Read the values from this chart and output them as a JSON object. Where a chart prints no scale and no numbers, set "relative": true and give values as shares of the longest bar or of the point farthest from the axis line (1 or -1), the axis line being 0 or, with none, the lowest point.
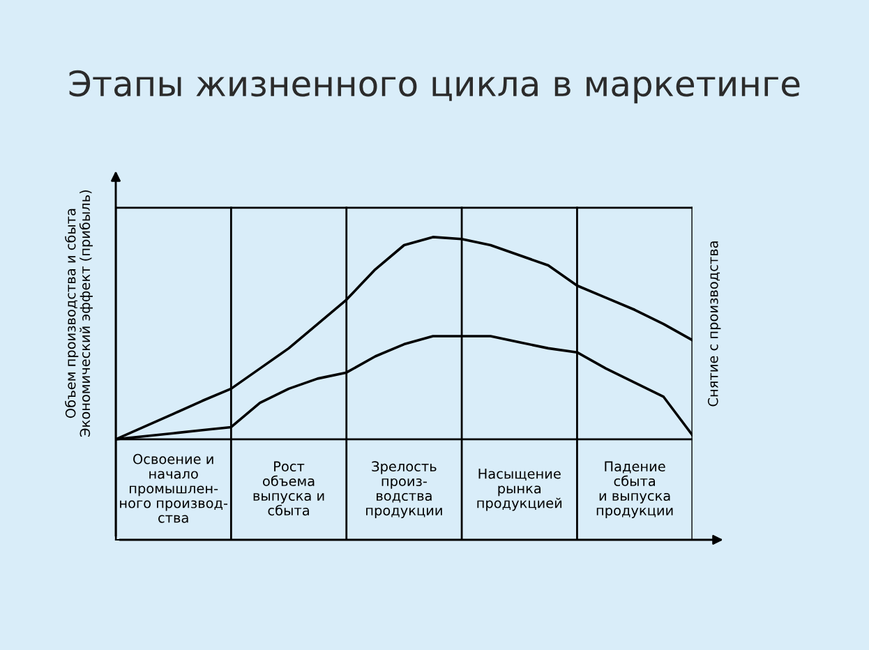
{
  "chart_data": {
    "type": "line",
    "title": "Этапы жизненного цикла в маркетинге",
    "ylabel": "Объем производства и сбыта\nЭкономический эффект (прибыль)",
    "y2label": "Снятие с производства",
    "relative": true,
    "categories": [
      null,
      null,
      null,
      null,
      null,
      null,
      null,
      null,
      null,
      null,
      null,
      null,
      null,
      null,
      null,
      null,
      null,
      null,
      null,
      null,
      null
    ],
    "series": [
      {
        "color": "#000000",
        "values": [
          0,
          0.063,
          0.126,
          0.19,
          0.25,
          0.35,
          0.45,
          0.57,
          0.69,
          0.84,
          0.96,
          1.0,
          0.99,
          0.96,
          0.91,
          0.86,
          0.76,
          0.7,
          0.64,
          0.57,
          0.49
        ]
      },
      {
        "color": "#000000",
        "values": [
          0,
          0.015,
          0.03,
          0.045,
          0.06,
          0.18,
          0.25,
          0.3,
          0.33,
          0.41,
          0.47,
          0.51,
          0.51,
          0.51,
          0.48,
          0.45,
          0.43,
          0.35,
          0.28,
          0.21,
          0.02
        ]
      }
    ],
    "annotations": [
      "Освоение и\nначало\nпромышлен-\nного производ-\nства",
      "Рост\nобъема\nвыпуска и\nсбыта",
      "Зрелость\nпроиз-\nводства\nпродукции",
      "Насыщение\nрынка\nпродукцией",
      "Падение\nсбыта\nи выпуска\nпродукции"
    ],
    "grid": "x",
    "legend": false,
    "marker": "none",
    "line_style": "solid"
  }
}
